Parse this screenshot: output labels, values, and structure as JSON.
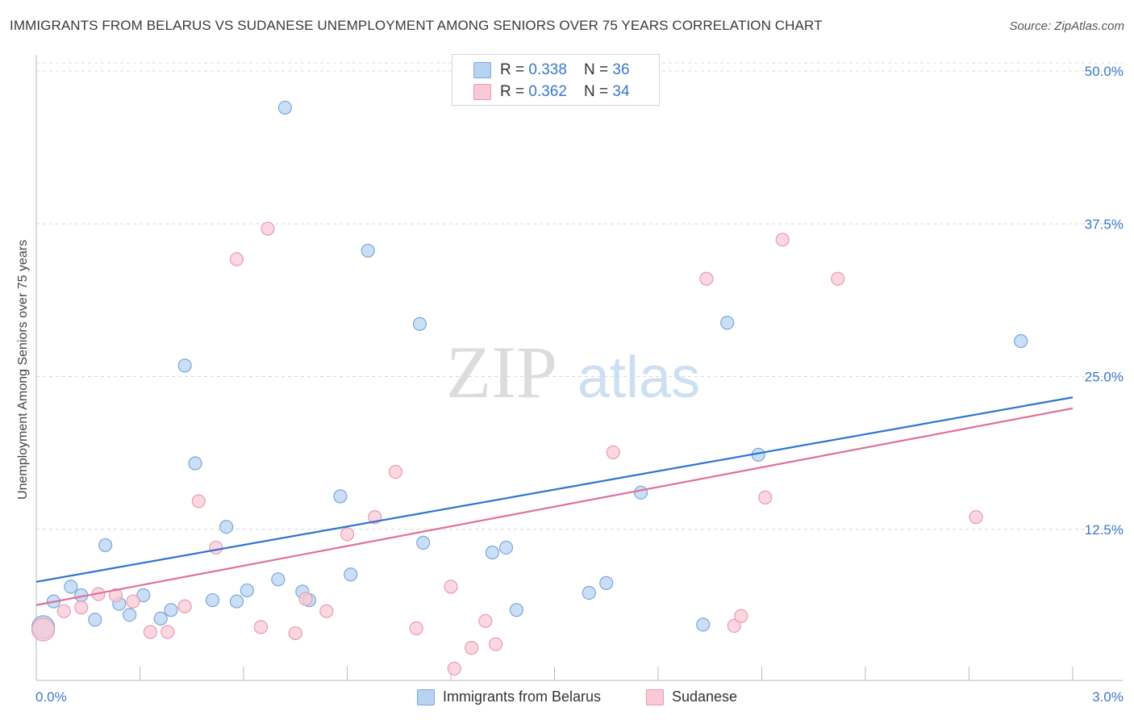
{
  "title": "IMMIGRANTS FROM BELARUS VS SUDANESE UNEMPLOYMENT AMONG SENIORS OVER 75 YEARS CORRELATION CHART",
  "source": "Source: ZipAtlas.com",
  "watermark": {
    "zip": "ZIP",
    "atlas": "atlas"
  },
  "legend": {
    "rows": [
      {
        "r_label": "R = ",
        "r_value": "0.338",
        "n_label": "N = ",
        "n_value": "36"
      },
      {
        "r_label": "R = ",
        "r_value": "0.362",
        "n_label": "N = ",
        "n_value": "34"
      }
    ]
  },
  "colors": {
    "blue_fill": "#b8d3f2",
    "blue_stroke": "#7aa8dc",
    "blue_line": "#2f74d0",
    "pink_fill": "#f9c9d6",
    "pink_stroke": "#eb9ab3",
    "pink_line": "#e0709a",
    "grid": "#d8d8d8",
    "tick_text": "#3b78c8"
  },
  "chart_data": {
    "type": "scatter",
    "title": "IMMIGRANTS FROM BELARUS VS SUDANESE UNEMPLOYMENT AMONG SENIORS OVER 75 YEARS CORRELATION CHART",
    "xlabel": "",
    "ylabel": "Unemployment Among Seniors over 75 years",
    "xlim": [
      0,
      3.0
    ],
    "ylim": [
      0,
      50
    ],
    "x_ticks": [
      "0.0%",
      "3.0%"
    ],
    "y_ticks": [
      {
        "value": 12.5,
        "label": "12.5%"
      },
      {
        "value": 25,
        "label": "25.0%"
      },
      {
        "value": 37.5,
        "label": "37.5%"
      },
      {
        "value": 50,
        "label": "50.0%"
      }
    ],
    "grid": true,
    "legend_position": "top-center",
    "series": [
      {
        "name": "Immigrants from Belarus",
        "color": "#b8d3f2",
        "trend": {
          "x": [
            0,
            3.0
          ],
          "y": [
            8.2,
            23.3
          ]
        },
        "points": [
          {
            "x": 0.02,
            "y": 4.5,
            "big": true
          },
          {
            "x": 0.05,
            "y": 6.6
          },
          {
            "x": 0.1,
            "y": 7.8
          },
          {
            "x": 0.13,
            "y": 7.1
          },
          {
            "x": 0.17,
            "y": 5.1
          },
          {
            "x": 0.2,
            "y": 11.2
          },
          {
            "x": 0.24,
            "y": 6.4
          },
          {
            "x": 0.27,
            "y": 5.5
          },
          {
            "x": 0.31,
            "y": 7.1
          },
          {
            "x": 0.36,
            "y": 5.2
          },
          {
            "x": 0.39,
            "y": 5.9
          },
          {
            "x": 0.43,
            "y": 25.9
          },
          {
            "x": 0.46,
            "y": 17.9
          },
          {
            "x": 0.51,
            "y": 6.7
          },
          {
            "x": 0.55,
            "y": 12.7
          },
          {
            "x": 0.58,
            "y": 6.6
          },
          {
            "x": 0.61,
            "y": 7.5
          },
          {
            "x": 0.7,
            "y": 8.4
          },
          {
            "x": 0.72,
            "y": 47.0
          },
          {
            "x": 0.77,
            "y": 7.4
          },
          {
            "x": 0.79,
            "y": 6.7
          },
          {
            "x": 0.88,
            "y": 15.2
          },
          {
            "x": 0.91,
            "y": 8.8
          },
          {
            "x": 0.96,
            "y": 35.3
          },
          {
            "x": 1.11,
            "y": 29.3
          },
          {
            "x": 1.12,
            "y": 11.4
          },
          {
            "x": 1.32,
            "y": 10.6
          },
          {
            "x": 1.36,
            "y": 11.0
          },
          {
            "x": 1.39,
            "y": 5.9
          },
          {
            "x": 1.6,
            "y": 7.3
          },
          {
            "x": 1.65,
            "y": 8.1
          },
          {
            "x": 1.75,
            "y": 15.5
          },
          {
            "x": 1.93,
            "y": 4.7
          },
          {
            "x": 2.0,
            "y": 29.4
          },
          {
            "x": 2.09,
            "y": 18.6
          },
          {
            "x": 2.85,
            "y": 27.9
          }
        ]
      },
      {
        "name": "Sudanese",
        "color": "#f9c9d6",
        "trend": {
          "x": [
            0,
            3.0
          ],
          "y": [
            6.3,
            22.4
          ]
        },
        "points": [
          {
            "x": 0.02,
            "y": 4.3,
            "big": true
          },
          {
            "x": 0.08,
            "y": 5.8
          },
          {
            "x": 0.13,
            "y": 6.1
          },
          {
            "x": 0.18,
            "y": 7.2
          },
          {
            "x": 0.23,
            "y": 7.1
          },
          {
            "x": 0.28,
            "y": 6.6
          },
          {
            "x": 0.33,
            "y": 4.1
          },
          {
            "x": 0.38,
            "y": 4.1
          },
          {
            "x": 0.43,
            "y": 6.2
          },
          {
            "x": 0.47,
            "y": 14.8
          },
          {
            "x": 0.52,
            "y": 11.0
          },
          {
            "x": 0.58,
            "y": 34.6
          },
          {
            "x": 0.65,
            "y": 4.5
          },
          {
            "x": 0.67,
            "y": 37.1
          },
          {
            "x": 0.75,
            "y": 4.0
          },
          {
            "x": 0.78,
            "y": 6.8
          },
          {
            "x": 0.84,
            "y": 5.8
          },
          {
            "x": 0.9,
            "y": 12.1
          },
          {
            "x": 0.98,
            "y": 13.5
          },
          {
            "x": 1.04,
            "y": 17.2
          },
          {
            "x": 1.1,
            "y": 4.4
          },
          {
            "x": 1.2,
            "y": 7.8
          },
          {
            "x": 1.21,
            "y": 1.1
          },
          {
            "x": 1.26,
            "y": 2.8
          },
          {
            "x": 1.3,
            "y": 5.0
          },
          {
            "x": 1.33,
            "y": 3.1
          },
          {
            "x": 1.67,
            "y": 18.8
          },
          {
            "x": 1.94,
            "y": 33.0
          },
          {
            "x": 2.02,
            "y": 4.6
          },
          {
            "x": 2.04,
            "y": 5.4
          },
          {
            "x": 2.11,
            "y": 15.1
          },
          {
            "x": 2.16,
            "y": 36.2
          },
          {
            "x": 2.32,
            "y": 33.0
          },
          {
            "x": 2.72,
            "y": 13.5
          }
        ]
      }
    ]
  },
  "bottom_legend": [
    {
      "label": "Immigrants from Belarus"
    },
    {
      "label": "Sudanese"
    }
  ]
}
